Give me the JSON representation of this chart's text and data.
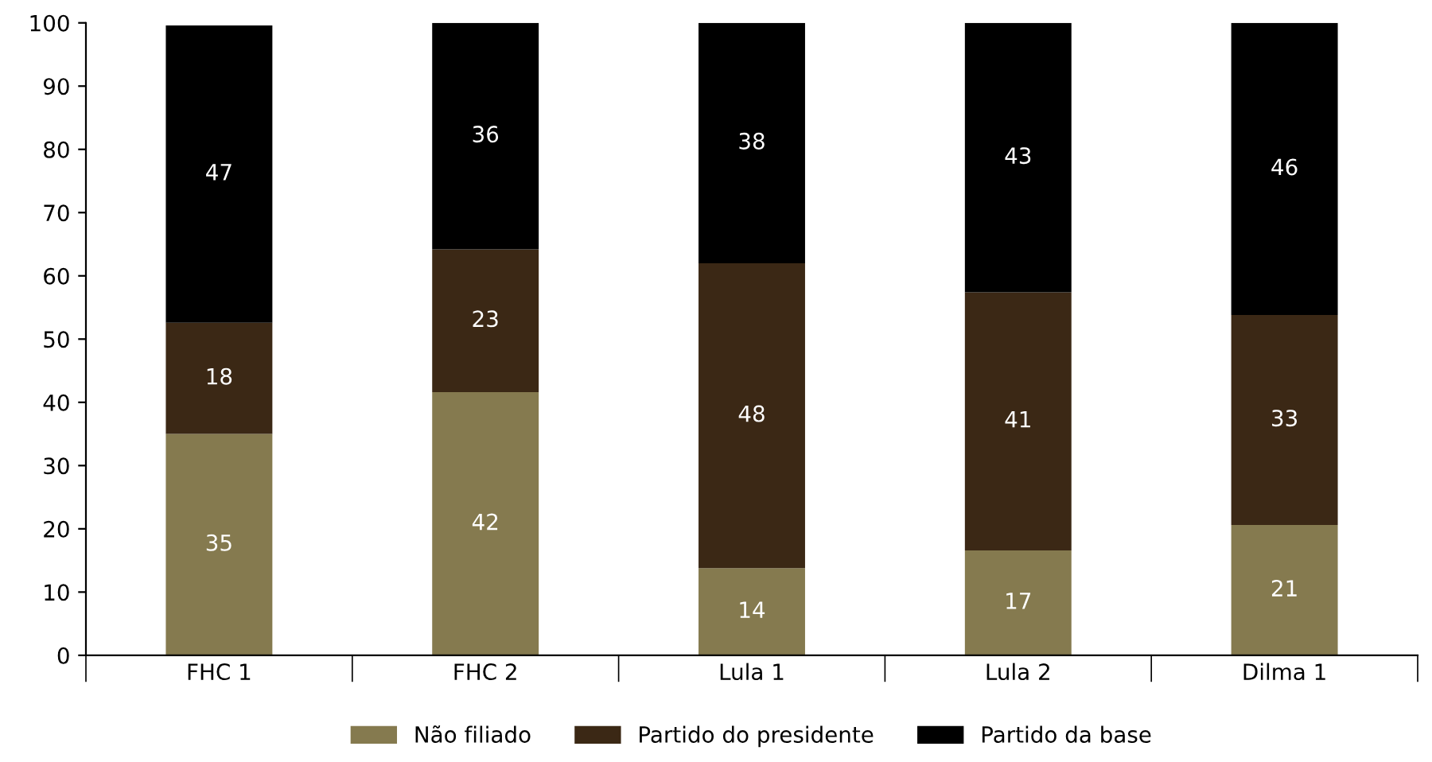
{
  "chart_data": {
    "type": "bar",
    "stacked": true,
    "categories": [
      "FHC 1",
      "FHC 2",
      "Lula 1",
      "Lula 2",
      "Dilma 1"
    ],
    "series": [
      {
        "name": "Não filiado",
        "color": "#857a4f",
        "values": [
          35.0,
          41.6,
          13.8,
          16.6,
          20.6
        ],
        "value_labels": [
          "35",
          "42",
          "14",
          "17",
          "21"
        ]
      },
      {
        "name": "Partido do presidente",
        "color": "#3b2815",
        "values": [
          17.6,
          22.6,
          48.2,
          40.8,
          33.2
        ],
        "value_labels": [
          "18",
          "23",
          "48",
          "41",
          "33"
        ]
      },
      {
        "name": "Partido da base",
        "color": "#000000",
        "values": [
          47.0,
          35.8,
          38.0,
          42.6,
          46.2
        ],
        "value_labels": [
          "47",
          "36",
          "38",
          "43",
          "46"
        ]
      }
    ],
    "ylim": [
      0,
      100
    ],
    "yticks": [
      0,
      10,
      20,
      30,
      40,
      50,
      60,
      70,
      80,
      90,
      100
    ],
    "grid": false,
    "legend": "bottom"
  }
}
